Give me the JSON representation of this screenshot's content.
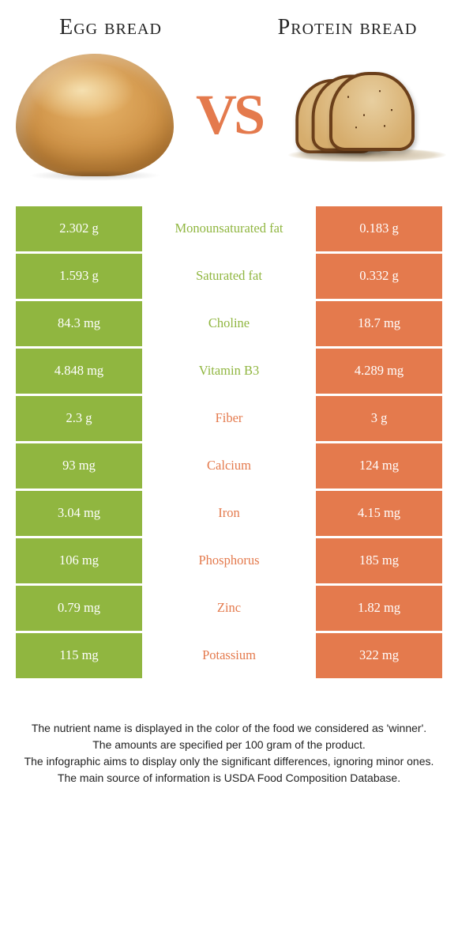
{
  "colors": {
    "green": "#90b640",
    "orange": "#e47a4d",
    "background": "#ffffff",
    "text": "#222222"
  },
  "left_food": {
    "title": "Egg bread"
  },
  "right_food": {
    "title": "Protein bread"
  },
  "vs_label": "VS",
  "table": {
    "left_bg": "#90b640",
    "right_bg": "#e47a4d",
    "rows": [
      {
        "label": "Monounsaturated fat",
        "winner": "left",
        "left": "2.302 g",
        "right": "0.183 g"
      },
      {
        "label": "Saturated fat",
        "winner": "left",
        "left": "1.593 g",
        "right": "0.332 g"
      },
      {
        "label": "Choline",
        "winner": "left",
        "left": "84.3 mg",
        "right": "18.7 mg"
      },
      {
        "label": "Vitamin B3",
        "winner": "left",
        "left": "4.848 mg",
        "right": "4.289 mg"
      },
      {
        "label": "Fiber",
        "winner": "right",
        "left": "2.3 g",
        "right": "3 g"
      },
      {
        "label": "Calcium",
        "winner": "right",
        "left": "93 mg",
        "right": "124 mg"
      },
      {
        "label": "Iron",
        "winner": "right",
        "left": "3.04 mg",
        "right": "4.15 mg"
      },
      {
        "label": "Phosphorus",
        "winner": "right",
        "left": "106 mg",
        "right": "185 mg"
      },
      {
        "label": "Zinc",
        "winner": "right",
        "left": "0.79 mg",
        "right": "1.82 mg"
      },
      {
        "label": "Potassium",
        "winner": "right",
        "left": "115 mg",
        "right": "322 mg"
      }
    ]
  },
  "footer": {
    "line1": "The nutrient name is displayed in the color of the food we considered as 'winner'.",
    "line2": "The amounts are specified per 100 gram of the product.",
    "line3": "The infographic aims to display only the significant differences, ignoring minor ones.",
    "line4": "The main source of information is USDA Food Composition Database."
  }
}
